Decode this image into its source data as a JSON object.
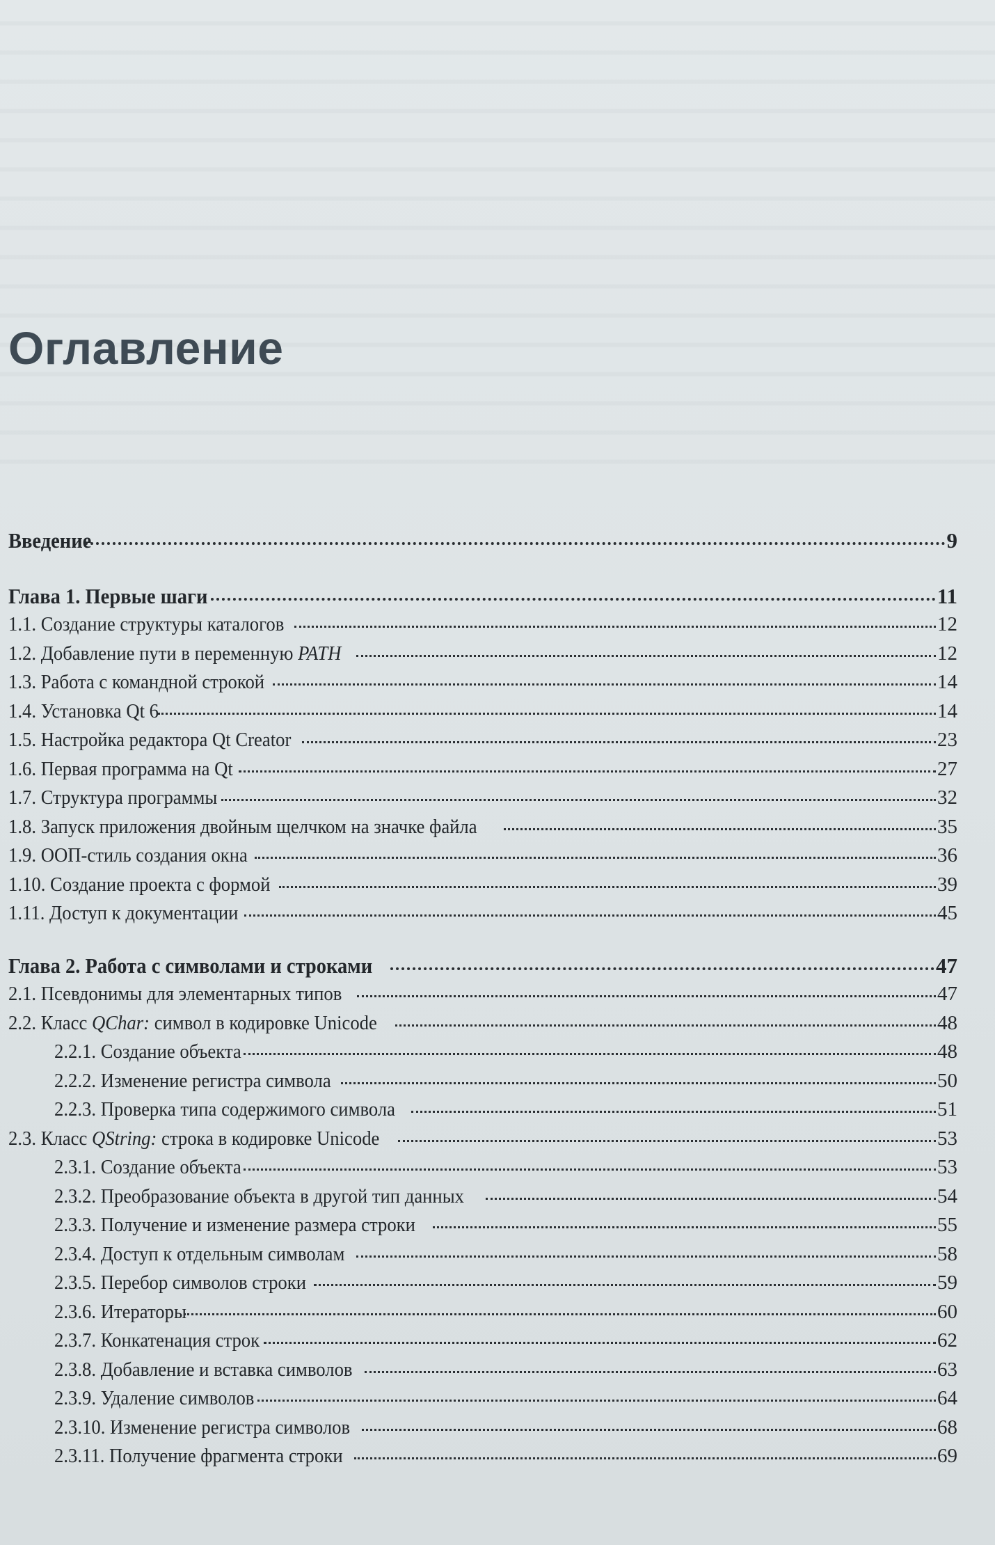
{
  "title": "Оглавление",
  "entries": [
    {
      "label": "Введение",
      "page": "9",
      "level": "chapter",
      "cls": "intro"
    },
    {
      "label": "Глава 1. Первые шаги",
      "page": "11",
      "level": "chapter"
    },
    {
      "label": "1.1. Создание структуры каталогов",
      "page": "12",
      "level": "section"
    },
    {
      "label": "1.2. Добавление пути в переменную PATH",
      "page": "12",
      "level": "section"
    },
    {
      "label": "1.3. Работа с командной строкой",
      "page": "14",
      "level": "section"
    },
    {
      "label": "1.4. Установка Qt 6",
      "page": "14",
      "level": "section"
    },
    {
      "label": "1.5. Настройка редактора Qt Creator",
      "page": "23",
      "level": "section"
    },
    {
      "label": "1.6. Первая программа на Qt",
      "page": "27",
      "level": "section"
    },
    {
      "label": "1.7. Структура программы",
      "page": "32",
      "level": "section"
    },
    {
      "label": "1.8. Запуск приложения двойным щелчком на значке файла",
      "page": "35",
      "level": "section"
    },
    {
      "label": "1.9. ООП-стиль создания окна",
      "page": "36",
      "level": "section"
    },
    {
      "label": "1.10. Создание проекта с формой",
      "page": "39",
      "level": "section"
    },
    {
      "label": "1.11. Доступ к документации",
      "page": "45",
      "level": "section"
    },
    {
      "label": "Глава 2. Работа с символами и строками",
      "page": "47",
      "level": "chapter",
      "cls": "ch2"
    },
    {
      "label": "2.1. Псевдонимы для элементарных типов",
      "page": "47",
      "level": "section"
    },
    {
      "label": "2.2. Класс QChar: символ в кодировке Unicode",
      "page": "48",
      "level": "section"
    },
    {
      "label": "2.2.1. Создание объекта",
      "page": "48",
      "level": "subsection"
    },
    {
      "label": "2.2.2. Изменение регистра символа",
      "page": "50",
      "level": "subsection"
    },
    {
      "label": "2.2.3. Проверка типа содержимого символа",
      "page": "51",
      "level": "subsection"
    },
    {
      "label": "2.3. Класс QString: строка в кодировке Unicode",
      "page": "53",
      "level": "section"
    },
    {
      "label": "2.3.1. Создание объекта",
      "page": "53",
      "level": "subsection"
    },
    {
      "label": "2.3.2. Преобразование объекта в другой тип данных",
      "page": "54",
      "level": "subsection"
    },
    {
      "label": "2.3.3. Получение и изменение размера строки",
      "page": "55",
      "level": "subsection"
    },
    {
      "label": "2.3.4. Доступ к отдельным символам",
      "page": "58",
      "level": "subsection"
    },
    {
      "label": "2.3.5. Перебор символов строки",
      "page": "59",
      "level": "subsection"
    },
    {
      "label": "2.3.6. Итераторы",
      "page": "60",
      "level": "subsection"
    },
    {
      "label": "2.3.7. Конкатенация строк",
      "page": "62",
      "level": "subsection"
    },
    {
      "label": "2.3.8. Добавление и вставка символов",
      "page": "63",
      "level": "subsection"
    },
    {
      "label": "2.3.9. Удаление символов",
      "page": "64",
      "level": "subsection"
    },
    {
      "label": "2.3.10. Изменение регистра символов",
      "page": "68",
      "level": "subsection"
    },
    {
      "label": "2.3.11. Получение фрагмента строки",
      "page": "69",
      "level": "subsection"
    }
  ],
  "italic_terms": [
    "PATH",
    "QChar:",
    "QString:"
  ]
}
